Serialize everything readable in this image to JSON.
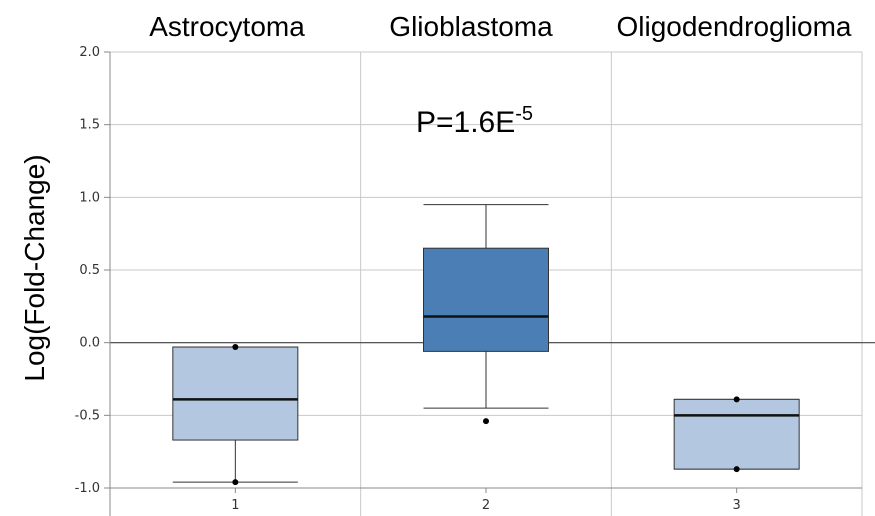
{
  "chart_data": {
    "type": "boxplot",
    "group_titles": [
      "Astrocytoma",
      "Glioblastoma",
      "Oligodendroglioma"
    ],
    "categories": [
      "1",
      "2",
      "3"
    ],
    "ylabel": "Log(Fold-Change)",
    "ylim": [
      -1.0,
      2.0
    ],
    "yticks": [
      2.0,
      1.5,
      1.0,
      0.5,
      0.0,
      -0.5,
      -1.0
    ],
    "ytick_labels": [
      "2.0",
      "1.5",
      "1.0",
      "0.5",
      "0.0",
      "-0.5",
      "-1.0"
    ],
    "reference_line": 0.0,
    "grid": true,
    "annotation": {
      "base": "P=1.6E",
      "exponent": "-5",
      "group": 2
    },
    "boxes": [
      {
        "category": "1",
        "whisker_low": -0.96,
        "q1": -0.67,
        "median": -0.39,
        "q3": -0.03,
        "whisker_high": -0.03,
        "outliers": [
          -0.96,
          -0.03
        ],
        "color": "#b3c8e0"
      },
      {
        "category": "2",
        "whisker_low": -0.45,
        "q1": -0.06,
        "median": 0.18,
        "q3": 0.65,
        "whisker_high": 0.95,
        "outliers": [
          -0.54
        ],
        "color": "#4a7eb4"
      },
      {
        "category": "3",
        "whisker_low": -0.87,
        "q1": -0.87,
        "median": -0.5,
        "q3": -0.39,
        "whisker_high": -0.39,
        "outliers": [
          -0.87,
          -0.39
        ],
        "color": "#b3c8e0"
      }
    ]
  }
}
